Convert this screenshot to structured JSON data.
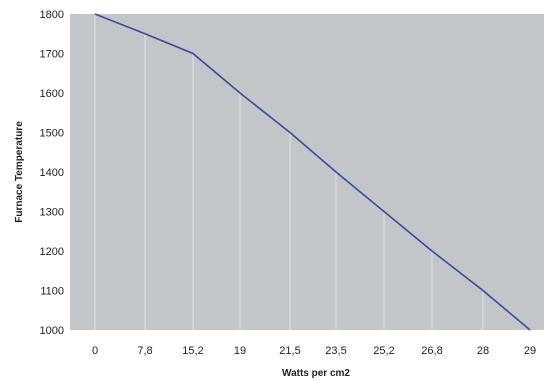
{
  "chart_data": {
    "type": "line",
    "title": "",
    "xlabel": "Watts per cm2",
    "ylabel": "Furnace Temperature",
    "categories": [
      "0",
      "7,8",
      "15,2",
      "19",
      "21,5",
      "23,5",
      "25,2",
      "26,8",
      "28",
      "29"
    ],
    "series": [
      {
        "values": [
          1800,
          1750,
          1700,
          1600,
          1500,
          1400,
          1300,
          1200,
          1100,
          1000
        ]
      }
    ],
    "ylim": [
      1000,
      1800
    ],
    "yticks": [
      1000,
      1100,
      1200,
      1300,
      1400,
      1500,
      1600,
      1700,
      1800
    ],
    "grid": "vertical",
    "legend": "none",
    "colors": {
      "plot_background": "#c3c6c9",
      "line": "#3b4a9e",
      "grid": "#e3e5e7"
    }
  }
}
